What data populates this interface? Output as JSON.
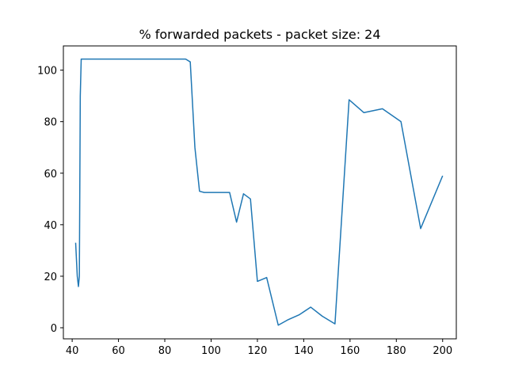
{
  "chart_data": {
    "type": "line",
    "title": "% forwarded packets - packet size: 24",
    "xlabel": "",
    "ylabel": "",
    "xlim": [
      36.2,
      205.9
    ],
    "ylim": [
      -4.3,
      109.4
    ],
    "x_ticks": [
      40,
      60,
      80,
      100,
      120,
      140,
      160,
      180,
      200
    ],
    "y_ticks": [
      0,
      20,
      40,
      60,
      80,
      100
    ],
    "grid": false,
    "line_color": "#1f77b4",
    "series": [
      {
        "x": [
          41.5,
          42.2,
          42.7,
          43.1,
          43.5,
          43.9,
          46,
          60,
          80,
          89,
          91,
          93,
          95,
          97,
          100,
          104,
          108,
          111,
          114,
          117,
          120,
          124,
          129,
          133,
          138,
          143,
          148,
          153.5,
          159.6,
          166,
          174,
          182,
          190.5,
          200
        ],
        "y": [
          33,
          20,
          16,
          20,
          90,
          104.3,
          104.3,
          104.3,
          104.3,
          104.3,
          103.2,
          70,
          53,
          52.5,
          52.5,
          52.5,
          52.5,
          41,
          52,
          50,
          18,
          19.5,
          1,
          3,
          5,
          8,
          4.5,
          1.5,
          88.5,
          83.5,
          85,
          80,
          38.5,
          59
        ]
      }
    ]
  }
}
